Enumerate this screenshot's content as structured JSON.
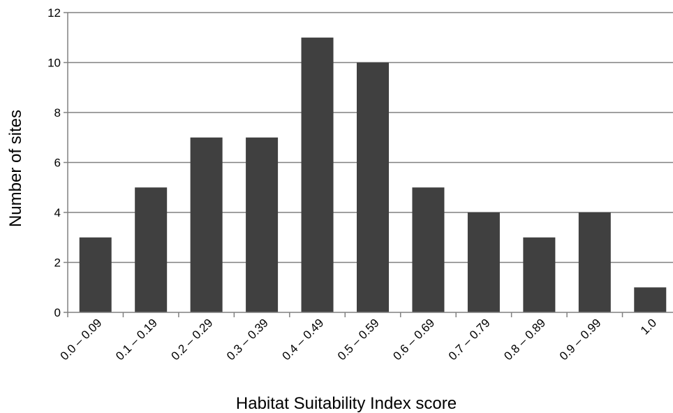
{
  "chart_data": {
    "type": "bar",
    "title": "",
    "xlabel": "Habitat Suitability Index score",
    "ylabel": "Number of sites",
    "categories": [
      "0.0 – 0.09",
      "0.1 – 0.19",
      "0.2 – 0.29",
      "0.3 – 0.39",
      "0.4 – 0.49",
      "0.5 – 0.59",
      "0.6 – 0.69",
      "0.7 – 0.79",
      "0.8 – 0.89",
      "0.9 – 0.99",
      "1.0"
    ],
    "values": [
      3,
      5,
      7,
      7,
      11,
      10,
      5,
      4,
      3,
      4,
      1
    ],
    "ylim": [
      0,
      12
    ],
    "yticks": [
      0,
      2,
      4,
      6,
      8,
      10,
      12
    ],
    "grid": "horizontal",
    "legend": "none",
    "bar_color": "#404040",
    "grid_color": "#808080",
    "axis_color": "#808080"
  }
}
